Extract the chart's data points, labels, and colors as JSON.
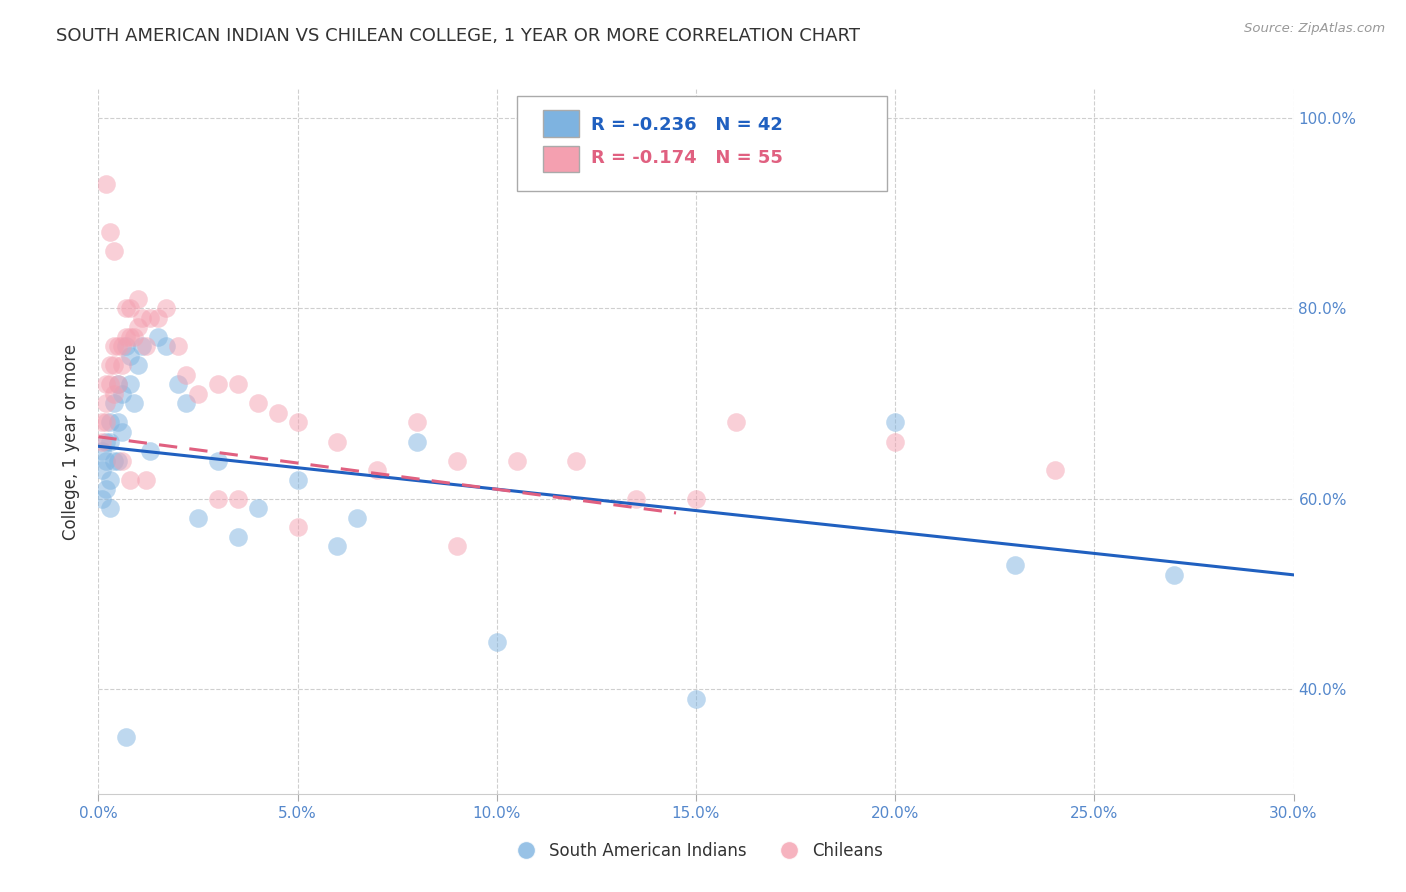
{
  "title": "SOUTH AMERICAN INDIAN VS CHILEAN COLLEGE, 1 YEAR OR MORE CORRELATION CHART",
  "source": "Source: ZipAtlas.com",
  "ylabel": "College, 1 year or more",
  "legend_label_1": "South American Indians",
  "legend_label_2": "Chileans",
  "r1": -0.236,
  "n1": 42,
  "r2": -0.174,
  "n2": 55,
  "color1": "#7EB3E0",
  "color2": "#F4A0B0",
  "trendline1_color": "#2060C0",
  "trendline2_color": "#E06080",
  "xmin": 0.0,
  "xmax": 0.3,
  "ymin": 0.29,
  "ymax": 1.03,
  "yticks": [
    0.4,
    0.6,
    0.8,
    1.0
  ],
  "xticks": [
    0.0,
    0.05,
    0.1,
    0.15,
    0.2,
    0.25,
    0.3
  ],
  "xtick_labels": [
    "0.0%",
    "5.0%",
    "10.0%",
    "15.0%",
    "20.0%",
    "25.0%",
    "30.0%"
  ],
  "ytick_labels": [
    "40.0%",
    "60.0%",
    "80.0%",
    "100.0%"
  ],
  "blue_trendline_x0": 0.0,
  "blue_trendline_x1": 0.3,
  "blue_trendline_y0": 0.655,
  "blue_trendline_y1": 0.52,
  "pink_trendline_x0": 0.0,
  "pink_trendline_x1": 0.145,
  "pink_trendline_y0": 0.665,
  "pink_trendline_y1": 0.585,
  "blue_x": [
    0.001,
    0.001,
    0.001,
    0.002,
    0.002,
    0.002,
    0.003,
    0.003,
    0.003,
    0.004,
    0.004,
    0.005,
    0.005,
    0.005,
    0.006,
    0.006,
    0.007,
    0.008,
    0.008,
    0.009,
    0.01,
    0.011,
    0.013,
    0.015,
    0.017,
    0.02,
    0.022,
    0.03,
    0.035,
    0.04,
    0.05,
    0.065,
    0.08,
    0.1,
    0.15,
    0.2,
    0.23,
    0.27,
    0.06,
    0.025,
    0.003,
    0.007
  ],
  "blue_y": [
    0.65,
    0.63,
    0.6,
    0.66,
    0.64,
    0.61,
    0.68,
    0.66,
    0.62,
    0.7,
    0.64,
    0.72,
    0.68,
    0.64,
    0.71,
    0.67,
    0.76,
    0.75,
    0.72,
    0.7,
    0.74,
    0.76,
    0.65,
    0.77,
    0.76,
    0.72,
    0.7,
    0.64,
    0.56,
    0.59,
    0.62,
    0.58,
    0.66,
    0.45,
    0.39,
    0.68,
    0.53,
    0.52,
    0.55,
    0.58,
    0.59,
    0.35
  ],
  "pink_x": [
    0.001,
    0.001,
    0.002,
    0.002,
    0.002,
    0.003,
    0.003,
    0.004,
    0.004,
    0.004,
    0.005,
    0.005,
    0.006,
    0.006,
    0.007,
    0.007,
    0.008,
    0.008,
    0.009,
    0.01,
    0.01,
    0.011,
    0.012,
    0.013,
    0.015,
    0.017,
    0.02,
    0.022,
    0.025,
    0.03,
    0.035,
    0.04,
    0.045,
    0.05,
    0.06,
    0.07,
    0.08,
    0.09,
    0.105,
    0.12,
    0.135,
    0.15,
    0.16,
    0.2,
    0.24,
    0.002,
    0.003,
    0.004,
    0.006,
    0.008,
    0.012,
    0.03,
    0.035,
    0.05,
    0.09
  ],
  "pink_y": [
    0.68,
    0.66,
    0.72,
    0.7,
    0.68,
    0.74,
    0.72,
    0.76,
    0.74,
    0.71,
    0.76,
    0.72,
    0.76,
    0.74,
    0.8,
    0.77,
    0.8,
    0.77,
    0.77,
    0.81,
    0.78,
    0.79,
    0.76,
    0.79,
    0.79,
    0.8,
    0.76,
    0.73,
    0.71,
    0.72,
    0.72,
    0.7,
    0.69,
    0.68,
    0.66,
    0.63,
    0.68,
    0.64,
    0.64,
    0.64,
    0.6,
    0.6,
    0.68,
    0.66,
    0.63,
    0.93,
    0.88,
    0.86,
    0.64,
    0.62,
    0.62,
    0.6,
    0.6,
    0.57,
    0.55
  ],
  "background_color": "#FFFFFF",
  "grid_color": "#BBBBBB",
  "axis_label_color": "#5588CC",
  "title_color": "#333333"
}
